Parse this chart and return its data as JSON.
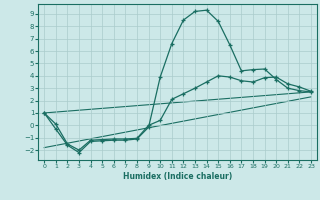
{
  "title": "",
  "xlabel": "Humidex (Indice chaleur)",
  "xlim": [
    -0.5,
    23.5
  ],
  "ylim": [
    -2.8,
    9.8
  ],
  "xticks": [
    0,
    1,
    2,
    3,
    4,
    5,
    6,
    7,
    8,
    9,
    10,
    11,
    12,
    13,
    14,
    15,
    16,
    17,
    18,
    19,
    20,
    21,
    22,
    23
  ],
  "yticks": [
    -2,
    -1,
    0,
    1,
    2,
    3,
    4,
    5,
    6,
    7,
    8,
    9
  ],
  "bg_color": "#cce8e8",
  "line_color": "#1a6e62",
  "grid_color": "#aacccc",
  "curve1_x": [
    0,
    1,
    2,
    3,
    4,
    5,
    6,
    7,
    8,
    9,
    10,
    11,
    12,
    13,
    14,
    15,
    16,
    17,
    18,
    19,
    20,
    21,
    22,
    23
  ],
  "curve1_y": [
    1.0,
    -0.3,
    -1.6,
    -2.2,
    -1.3,
    -1.25,
    -1.2,
    -1.2,
    -1.1,
    -0.15,
    3.9,
    6.6,
    8.5,
    9.2,
    9.3,
    8.4,
    6.5,
    4.4,
    4.5,
    4.55,
    3.7,
    3.0,
    2.8,
    2.7
  ],
  "curve2_x": [
    0,
    1,
    2,
    3,
    4,
    5,
    6,
    7,
    8,
    9,
    10,
    11,
    12,
    13,
    14,
    15,
    16,
    17,
    18,
    19,
    20,
    21,
    22,
    23
  ],
  "curve2_y": [
    1.0,
    0.1,
    -1.5,
    -2.0,
    -1.2,
    -1.15,
    -1.1,
    -1.1,
    -1.05,
    0.0,
    0.4,
    2.1,
    2.55,
    3.0,
    3.5,
    4.0,
    3.9,
    3.6,
    3.5,
    3.85,
    3.9,
    3.35,
    3.1,
    2.75
  ],
  "line3_x": [
    0,
    23
  ],
  "line3_y": [
    1.0,
    2.7
  ],
  "line4_x": [
    0,
    23
  ],
  "line4_y": [
    -1.8,
    2.3
  ]
}
